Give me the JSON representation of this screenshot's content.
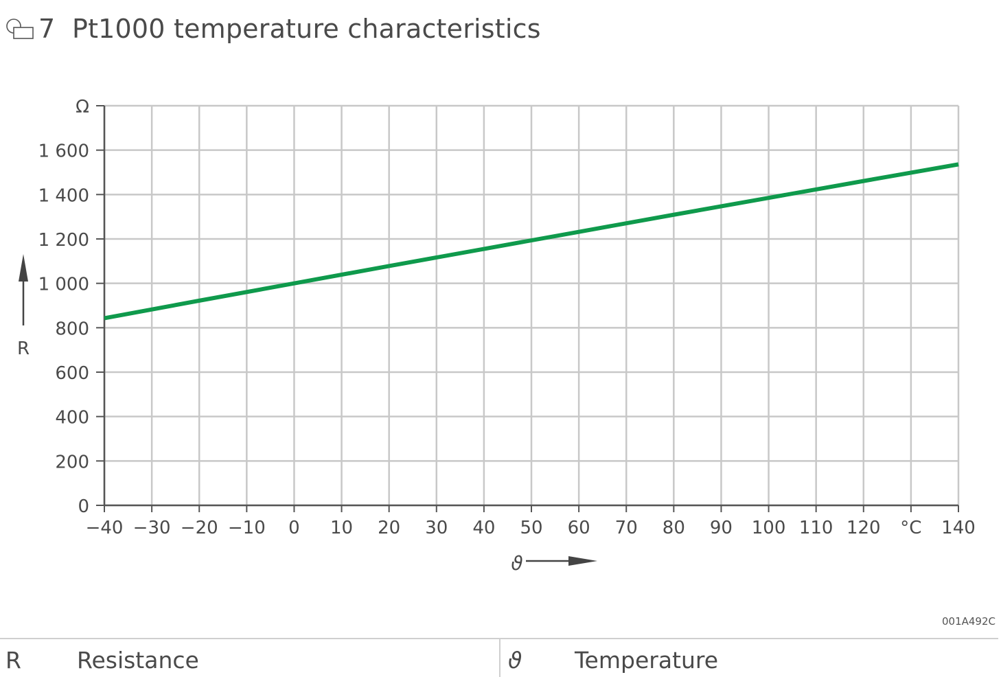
{
  "figure": {
    "number": "7",
    "title": "Pt1000 temperature characteristics",
    "code": "001A492C"
  },
  "legend": [
    {
      "symbol": "R",
      "description": "Resistance"
    },
    {
      "symbol": "ϑ",
      "description": "Temperature"
    }
  ],
  "colors": {
    "line": "#0f9a4c",
    "grid": "#c8c8c8",
    "axis": "#555555",
    "text": "#4a4a4a"
  },
  "chart_data": {
    "type": "line",
    "title": "Pt1000 temperature characteristics",
    "xlabel": "ϑ",
    "ylabel": "R",
    "x_unit": "°C",
    "y_unit": "Ω",
    "xlim": [
      -40,
      140
    ],
    "ylim": [
      0,
      1800
    ],
    "x_ticks": [
      -40,
      -30,
      -20,
      -10,
      0,
      10,
      20,
      30,
      40,
      50,
      60,
      70,
      80,
      90,
      100,
      110,
      120,
      130,
      140
    ],
    "x_tick_labels": [
      "−40",
      "−30",
      "−20",
      "−10",
      "0",
      "10",
      "20",
      "30",
      "40",
      "50",
      "60",
      "70",
      "80",
      "90",
      "100",
      "110",
      "120",
      "°C",
      "140"
    ],
    "y_ticks": [
      0,
      200,
      400,
      600,
      800,
      1000,
      1200,
      1400,
      1600,
      1800
    ],
    "y_tick_labels": [
      "0",
      "200",
      "400",
      "600",
      "800",
      "1 000",
      "1 200",
      "1 400",
      "1 600",
      "Ω"
    ],
    "grid": true,
    "series": [
      {
        "x": [
          -40,
          -20,
          0,
          20,
          40,
          60,
          80,
          100,
          120,
          140
        ],
        "values": [
          843,
          922,
          1000,
          1078,
          1155,
          1232,
          1309,
          1385,
          1461,
          1536
        ]
      }
    ]
  }
}
